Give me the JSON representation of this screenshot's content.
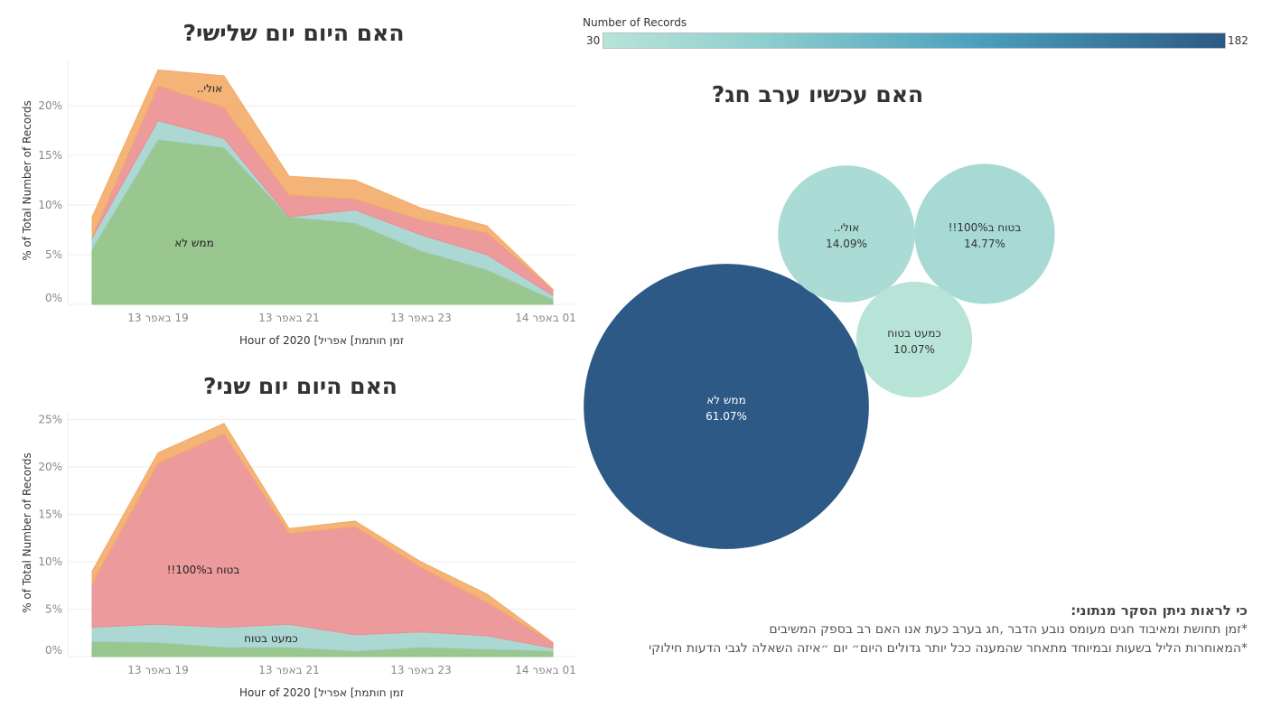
{
  "colors": {
    "not_at_all": "#8fc083",
    "almost_sure": "#a3d4cf",
    "sure_100": "#eb8f91",
    "maybe": "#f3ab68",
    "bubble_low": "#b8e4d8",
    "bubble_high": "#2c5985"
  },
  "chart_data": [
    {
      "type": "area",
      "stacked": true,
      "title": "האם היום יום שלישי?",
      "xlabel": "Hour of 2020 [אפריל [חותמת זמן",
      "ylabel": "% of Total Number of Records",
      "x": [
        "13 באפר 18",
        "13 באפר 19",
        "13 באפר 20",
        "13 באפר 21",
        "13 באפר 22",
        "13 באפר 23",
        "14 באפר 00",
        "14 באפר 01"
      ],
      "x_ticks": [
        "13 באפר 19",
        "13 באפר 21",
        "13 באפר 23",
        "14 באפר 01"
      ],
      "y_ticks": [
        "0%",
        "5%",
        "10%",
        "15%",
        "20%"
      ],
      "ylim": [
        0,
        24.5
      ],
      "grid": true,
      "series": [
        {
          "name": "ממש לא",
          "color_key": "not_at_all",
          "values": [
            5.6,
            16.6,
            15.8,
            8.8,
            8.2,
            5.4,
            3.5,
            0.5
          ],
          "label_shown": true
        },
        {
          "name": "כמעט בטוח",
          "color_key": "almost_sure",
          "values": [
            1.1,
            1.9,
            0.9,
            0,
            1.3,
            1.6,
            1.5,
            0.4
          ],
          "label_shown": false
        },
        {
          "name": "בטוח ב100%!!",
          "color_key": "sure_100",
          "values": [
            0.1,
            3.5,
            3.1,
            2.2,
            1.1,
            1.5,
            2.2,
            0.6
          ],
          "label_shown": false
        },
        {
          "name": "אולי..",
          "color_key": "maybe",
          "values": [
            2.0,
            1.6,
            3.2,
            1.9,
            1.9,
            1.2,
            0.7,
            0
          ],
          "label_shown": true
        }
      ]
    },
    {
      "type": "area",
      "stacked": true,
      "title": "האם היום יום שני?",
      "xlabel": "Hour of 2020 [אפריל [חותמת זמן",
      "ylabel": "% of Total Number of Records",
      "x": [
        "13 באפר 18",
        "13 באפר 19",
        "13 באפר 20",
        "13 באפר 21",
        "13 באפר 22",
        "13 באפר 23",
        "14 באפר 00",
        "14 באפר 01"
      ],
      "x_ticks": [
        "13 באפר 19",
        "13 באפר 21",
        "13 באפר 23",
        "14 באפר 01"
      ],
      "y_ticks": [
        "0%",
        "5%",
        "10%",
        "15%",
        "20%",
        "25%"
      ],
      "ylim": [
        0,
        25.5
      ],
      "grid": true,
      "series": [
        {
          "name": "ממש לא",
          "color_key": "not_at_all",
          "values": [
            1.6,
            1.5,
            1.0,
            1.0,
            0.6,
            1.0,
            0.8,
            0.6
          ],
          "label_shown": false
        },
        {
          "name": "כמעט בטוח",
          "color_key": "almost_sure",
          "values": [
            1.5,
            1.9,
            2.1,
            2.4,
            1.7,
            1.6,
            1.4,
            0.3
          ],
          "label_shown": true
        },
        {
          "name": "בטוח ב100%!!",
          "color_key": "sure_100",
          "values": [
            4.6,
            17.0,
            20.4,
            9.6,
            11.4,
            6.8,
            3.5,
            0.6
          ],
          "label_shown": true
        },
        {
          "name": "אולי..",
          "color_key": "maybe",
          "values": [
            1.3,
            1.1,
            1.1,
            0.5,
            0.6,
            0.6,
            0.9,
            0
          ],
          "label_shown": false
        }
      ]
    },
    {
      "type": "bubble",
      "title": "האם עכשיו ערב חג?",
      "color_legend": {
        "title": "Number of Records",
        "min": 30,
        "max": 182
      },
      "bubbles": [
        {
          "name": "ממש לא",
          "percent_label": "61.07%",
          "percent": 61.07
        },
        {
          "name": "אולי..",
          "percent_label": "14.09%",
          "percent": 14.09
        },
        {
          "name": "בטוח ב100%!!",
          "percent_label": "14.77%",
          "percent": 14.77
        },
        {
          "name": "כמעט בטוח",
          "percent_label": "10.07%",
          "percent": 10.07
        }
      ]
    }
  ],
  "notes": {
    "heading": ":מנתוני הסקר ניתן לראות כי",
    "line1": "המשיבים בספק רב האם אנו כעת בערב חג, הדבר נובע מעומס חגים ומאיבוד תחושת זמן*",
    "line2": "חילוקי הדעות לגבי השאלה ״איזה יום היום״ גדולים יותר ככל שהמענה מתאחר ובמיוחד בשעות הליל המאוחרות*"
  }
}
